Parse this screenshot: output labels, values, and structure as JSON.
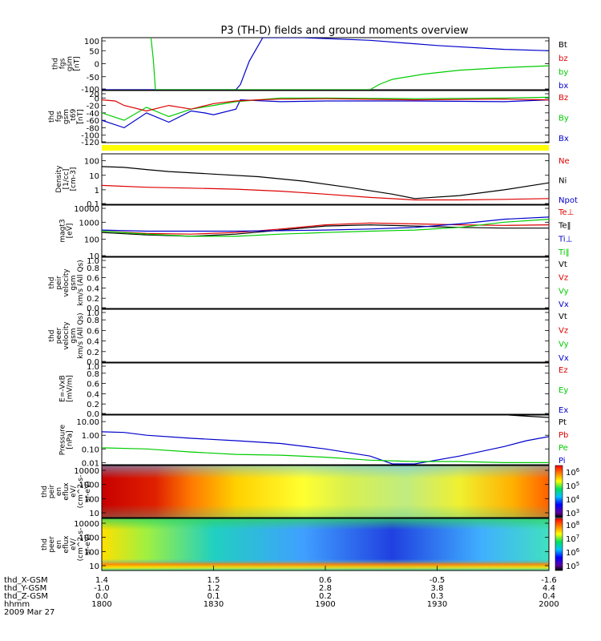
{
  "title": "P3 (TH-D) fields and ground moments overview",
  "colors": {
    "black": "#000000",
    "red": "#dd0000",
    "green": "#00cc00",
    "blue": "#0000cc",
    "yellow": "#ffff00"
  },
  "chart_data": [
    {
      "type": "line",
      "ylabel": [
        "thd",
        "fgs",
        "gsm",
        "[nT]"
      ],
      "ylim": [
        -100,
        100
      ],
      "yticks": [
        "100",
        "50",
        "0",
        "-50",
        "-100"
      ],
      "legend": [
        "Bt",
        "bz",
        "by",
        "bx"
      ],
      "legend_colors": [
        "#000000",
        "#dd0000",
        "#00cc00",
        "#0000cc"
      ],
      "series": [
        {
          "name": "bx",
          "color": "#0000cc",
          "x": [
            0.0,
            0.3,
            0.31,
            0.33,
            0.36,
            0.45,
            0.6,
            0.75,
            0.9,
            1.0
          ],
          "y": [
            -100,
            -100,
            -80,
            10,
            100,
            100,
            90,
            70,
            55,
            50
          ]
        },
        {
          "name": "by",
          "color": "#00cc00",
          "x": [
            0.11,
            0.115,
            0.12,
            0.6,
            0.62,
            0.65,
            0.72,
            0.8,
            0.9,
            1.0
          ],
          "y": [
            100,
            20,
            -100,
            -100,
            -80,
            -60,
            -40,
            -25,
            -15,
            -8
          ]
        }
      ]
    },
    {
      "type": "line",
      "ylabel": [
        "thd",
        "fgs",
        "gsm",
        "_t69",
        "[nT]"
      ],
      "ylim": [
        -120,
        20
      ],
      "yticks": [
        "20",
        "0",
        "-20",
        "-40",
        "-60",
        "-80",
        "-100",
        "-120"
      ],
      "legend": [
        "Bz",
        "By",
        "Bx"
      ],
      "legend_colors": [
        "#dd0000",
        "#00cc00",
        "#0000cc"
      ],
      "series": [
        {
          "name": "Bx",
          "color": "#0000cc",
          "x": [
            0.0,
            0.05,
            0.1,
            0.15,
            0.2,
            0.23,
            0.25,
            0.3,
            0.31,
            0.4,
            0.5,
            0.7,
            0.9,
            1.0
          ],
          "y": [
            -60,
            -80,
            -40,
            -65,
            -35,
            -40,
            -45,
            -30,
            -5,
            -10,
            -8,
            -8,
            -10,
            -5
          ]
        },
        {
          "name": "By",
          "color": "#00cc00",
          "x": [
            0.0,
            0.05,
            0.1,
            0.15,
            0.2,
            0.25,
            0.3,
            0.35,
            0.4,
            0.5,
            0.7,
            0.9,
            1.0
          ],
          "y": [
            -40,
            -60,
            -25,
            -50,
            -30,
            -20,
            -10,
            -5,
            0,
            0,
            -2,
            0,
            2
          ]
        },
        {
          "name": "Bz",
          "color": "#dd0000",
          "x": [
            0.0,
            0.03,
            0.05,
            0.1,
            0.15,
            0.2,
            0.25,
            0.3,
            0.35,
            0.4,
            0.5,
            0.7,
            0.9,
            1.0
          ],
          "y": [
            -5,
            -8,
            -20,
            -35,
            -20,
            -30,
            -15,
            -8,
            -5,
            -3,
            -2,
            -5,
            -3,
            -5
          ]
        }
      ]
    },
    {
      "type": "line",
      "ylabel": [
        "Density",
        "[1/cc]",
        "[cm-3]"
      ],
      "yscale": "log",
      "ylim": [
        0.1,
        300
      ],
      "yticks": [
        "100",
        "10",
        "1",
        "0.1"
      ],
      "legend": [
        "Ne",
        "Ni",
        "Npot"
      ],
      "legend_colors": [
        "#dd0000",
        "#000000",
        "#0000cc"
      ],
      "series": [
        {
          "name": "Ni",
          "color": "#000000",
          "x": [
            0.0,
            0.05,
            0.1,
            0.15,
            0.25,
            0.35,
            0.45,
            0.55,
            0.65,
            0.7,
            0.8,
            0.9,
            1.0
          ],
          "y": [
            40,
            35,
            25,
            18,
            12,
            8,
            4,
            1.5,
            0.5,
            0.25,
            0.4,
            1.0,
            3.0
          ]
        },
        {
          "name": "Ne",
          "color": "#dd0000",
          "x": [
            0.0,
            0.1,
            0.2,
            0.3,
            0.4,
            0.5,
            0.6,
            0.7,
            0.8,
            0.9,
            1.0
          ],
          "y": [
            2.0,
            1.5,
            1.3,
            1.1,
            0.8,
            0.5,
            0.3,
            0.2,
            0.2,
            0.22,
            0.25
          ]
        }
      ]
    },
    {
      "type": "line",
      "ylabel": [
        "magt3",
        "[eV]"
      ],
      "yscale": "log",
      "ylim": [
        10,
        10000
      ],
      "yticks": [
        "10000",
        "1000",
        "100",
        "10"
      ],
      "legend": [
        "Te⊥",
        "Te‖",
        "Ti⊥",
        "Ti‖"
      ],
      "legend_colors": [
        "#dd0000",
        "#000000",
        "#0000cc",
        "#00cc00"
      ],
      "series": [
        {
          "name": "Te‖",
          "color": "#000000",
          "x": [
            0.0,
            0.1,
            0.2,
            0.3,
            0.4,
            0.5,
            0.6,
            0.7,
            0.8,
            0.9,
            1.0
          ],
          "y": [
            250,
            180,
            150,
            200,
            350,
            600,
            700,
            600,
            500,
            450,
            450
          ]
        },
        {
          "name": "Te⊥",
          "color": "#dd0000",
          "x": [
            0.0,
            0.1,
            0.2,
            0.3,
            0.4,
            0.5,
            0.6,
            0.7,
            0.8,
            0.9,
            1.0
          ],
          "y": [
            300,
            220,
            200,
            250,
            400,
            700,
            900,
            800,
            700,
            650,
            700
          ]
        },
        {
          "name": "Ti⊥",
          "color": "#0000cc",
          "x": [
            0.0,
            0.1,
            0.2,
            0.3,
            0.4,
            0.5,
            0.6,
            0.7,
            0.8,
            0.9,
            1.0
          ],
          "y": [
            350,
            300,
            300,
            300,
            320,
            350,
            400,
            500,
            800,
            1500,
            2000
          ]
        },
        {
          "name": "Ti‖",
          "color": "#00cc00",
          "x": [
            0.0,
            0.1,
            0.2,
            0.3,
            0.4,
            0.5,
            0.6,
            0.7,
            0.8,
            0.9,
            1.0
          ],
          "y": [
            300,
            200,
            150,
            150,
            200,
            250,
            300,
            350,
            500,
            1000,
            1500
          ]
        }
      ]
    },
    {
      "type": "line",
      "ylabel": [
        "thd",
        "peir",
        "velocity",
        "gsm",
        "km/s (All Qs)"
      ],
      "ylim": [
        0,
        1
      ],
      "yticks": [
        "1.0",
        "0.8",
        "0.6",
        "0.4",
        "0.2",
        "0.0"
      ],
      "legend": [
        "Vt",
        "Vz",
        "Vy",
        "Vx"
      ],
      "legend_colors": [
        "#000000",
        "#dd0000",
        "#00cc00",
        "#0000cc"
      ],
      "series": []
    },
    {
      "type": "line",
      "ylabel": [
        "thd",
        "peer",
        "velocity",
        "gsm",
        "km/s (All Qs)"
      ],
      "ylim": [
        0,
        1
      ],
      "yticks": [
        "1.0",
        "0.8",
        "0.6",
        "0.4",
        "0.2",
        "0.0"
      ],
      "legend": [
        "Vt",
        "Vz",
        "Vy",
        "Vx"
      ],
      "legend_colors": [
        "#000000",
        "#dd0000",
        "#00cc00",
        "#0000cc"
      ],
      "series": []
    },
    {
      "type": "line",
      "ylabel": [
        "E=-VxB",
        "[mV/m]"
      ],
      "ylim": [
        0,
        1
      ],
      "yticks": [
        "1.0",
        "0.8",
        "0.6",
        "0.4",
        "0.2",
        "0.0"
      ],
      "legend": [
        "Ez",
        "Ey",
        "Ex"
      ],
      "legend_colors": [
        "#dd0000",
        "#00cc00",
        "#0000cc"
      ],
      "series": []
    },
    {
      "type": "line",
      "ylabel": [
        "Pressure",
        "[nPa]"
      ],
      "yscale": "log",
      "ylim": [
        0.007,
        30
      ],
      "yticks": [
        "10.00",
        "1.00",
        "0.10",
        "0.01"
      ],
      "legend": [
        "Pt",
        "Pb",
        "Pe",
        "Pi"
      ],
      "legend_colors": [
        "#000000",
        "#dd0000",
        "#00cc00",
        "#0000cc"
      ],
      "series": [
        {
          "name": "Pt",
          "color": "#000000",
          "x": [
            0.91,
            0.95,
            1.0
          ],
          "y": [
            30,
            25,
            20
          ]
        },
        {
          "name": "Pi",
          "color": "#0000cc",
          "x": [
            0.0,
            0.05,
            0.1,
            0.2,
            0.3,
            0.4,
            0.5,
            0.6,
            0.65,
            0.7,
            0.8,
            0.9,
            0.95,
            1.0
          ],
          "y": [
            1.8,
            1.6,
            1.0,
            0.6,
            0.4,
            0.25,
            0.1,
            0.03,
            0.008,
            0.008,
            0.03,
            0.15,
            0.4,
            0.8
          ]
        },
        {
          "name": "Pe",
          "color": "#00cc00",
          "x": [
            0.0,
            0.1,
            0.2,
            0.3,
            0.4,
            0.5,
            0.6,
            0.7,
            0.8,
            0.9,
            1.0
          ],
          "y": [
            0.12,
            0.1,
            0.06,
            0.04,
            0.035,
            0.025,
            0.015,
            0.012,
            0.012,
            0.01,
            0.01
          ]
        }
      ]
    },
    {
      "type": "heatmap",
      "ylabel": [
        "thd",
        "peir",
        "en",
        "eflux",
        "eV/",
        "(cm^2-s-",
        "sr-eV)"
      ],
      "yscale": "log",
      "yticks": [
        "10000",
        "1000",
        "100",
        "10"
      ],
      "colorbar_ticks": [
        "10^6",
        "10^5",
        "10^4",
        "10^3"
      ],
      "colorbar_label_base": "10",
      "colorbar_label_exp": [
        "6",
        "5",
        "4",
        "3"
      ]
    },
    {
      "type": "heatmap",
      "ylabel": [
        "thd",
        "peer",
        "en",
        "eflux",
        "eV/",
        "(cm^2-s-",
        "sr-eV)"
      ],
      "yscale": "log",
      "yticks": [
        "10000",
        "1000",
        "100",
        "10"
      ],
      "colorbar_ticks": [
        "10^8",
        "10^7",
        "10^6",
        "10^5"
      ],
      "colorbar_label_base": "10",
      "colorbar_label_exp": [
        "8",
        "7",
        "6",
        "5"
      ]
    }
  ],
  "x_axis": {
    "rows": [
      {
        "label": "thd_X-GSM",
        "values": [
          "1.4",
          "1.5",
          "0.6",
          "-0.5",
          "-1.6"
        ]
      },
      {
        "label": "thd_Y-GSM",
        "values": [
          "-1.0",
          "1.2",
          "2.8",
          "3.8",
          "4.4"
        ]
      },
      {
        "label": "thd_Z-GSM",
        "values": [
          "0.0",
          "0.1",
          "0.2",
          "0.3",
          "0.4"
        ]
      },
      {
        "label": "hhmm",
        "values": [
          "1800",
          "1830",
          "1900",
          "1930",
          "2000"
        ]
      }
    ],
    "date": "2009 Mar 27"
  }
}
